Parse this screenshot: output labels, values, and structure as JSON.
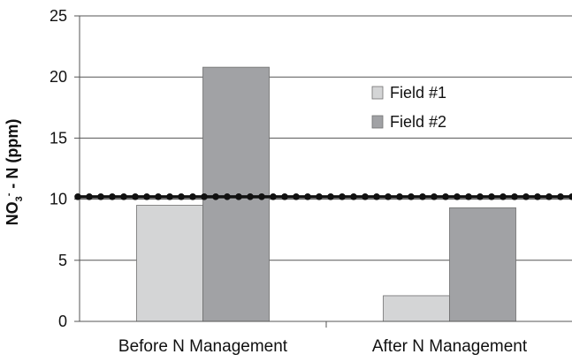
{
  "chart_data": {
    "type": "bar",
    "categories": [
      "Before N Management",
      "After N Management"
    ],
    "series": [
      {
        "name": "Field #1",
        "values": [
          9.5,
          2.1
        ],
        "color": "#d4d5d6"
      },
      {
        "name": "Field #2",
        "values": [
          20.8,
          9.3
        ],
        "color": "#a1a2a5"
      }
    ],
    "reference_line": {
      "value": 10.2,
      "style": "dotted",
      "color": "#111111"
    },
    "ylabel": {
      "base": "NO",
      "sub": "3",
      "sup": "-",
      "rest": " - N (ppm)"
    },
    "ylim": [
      0,
      25
    ],
    "yticks": [
      "0",
      "5",
      "10",
      "15",
      "20",
      "25"
    ],
    "grid": true,
    "legend_position": "top-right"
  }
}
